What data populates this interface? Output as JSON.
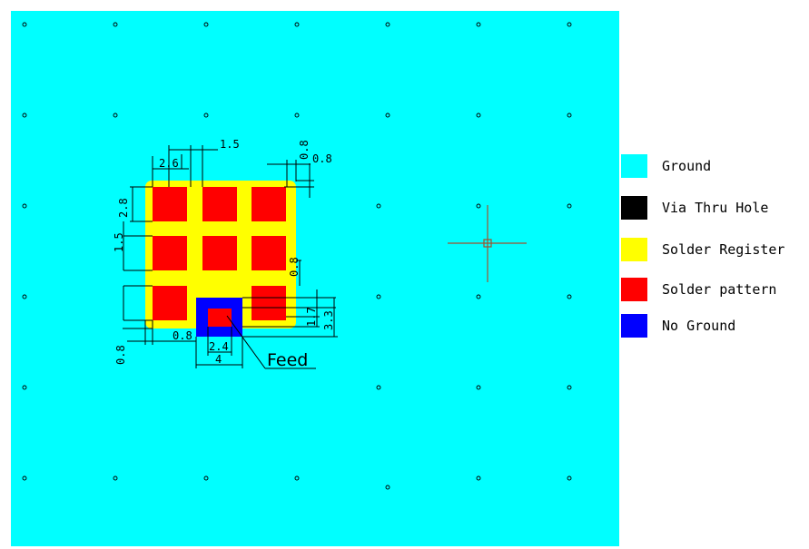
{
  "colors": {
    "ground": "#00ffff",
    "via": "#000000",
    "solder_register": "#ffff00",
    "solder_pattern": "#ff0000",
    "no_ground": "#0000ff",
    "crosshair": "#a0522d"
  },
  "legend": [
    {
      "label": "Ground",
      "color": "#00ffff"
    },
    {
      "label": "Via Thru Hole",
      "color": "#000000"
    },
    {
      "label": "Solder Register",
      "color": "#ffff00"
    },
    {
      "label": "Solder pattern",
      "color": "#ff0000"
    },
    {
      "label": "No Ground",
      "color": "#0000ff"
    }
  ],
  "dimensions": {
    "top_pitch": "1.5",
    "top_pad_width": "2.6",
    "top_right_gap": "0.8",
    "top_right_gap2": "0.8",
    "left_pad_height": "2.8",
    "left_pitch": "1.5",
    "bottom_left": "0.8",
    "bottom_gap": "0.8",
    "right_gap": "0.8",
    "feed_inner": "2.4",
    "feed_outer": "4",
    "right_h1": "1.7",
    "right_h2": "3.3"
  },
  "feed_label": "Feed"
}
